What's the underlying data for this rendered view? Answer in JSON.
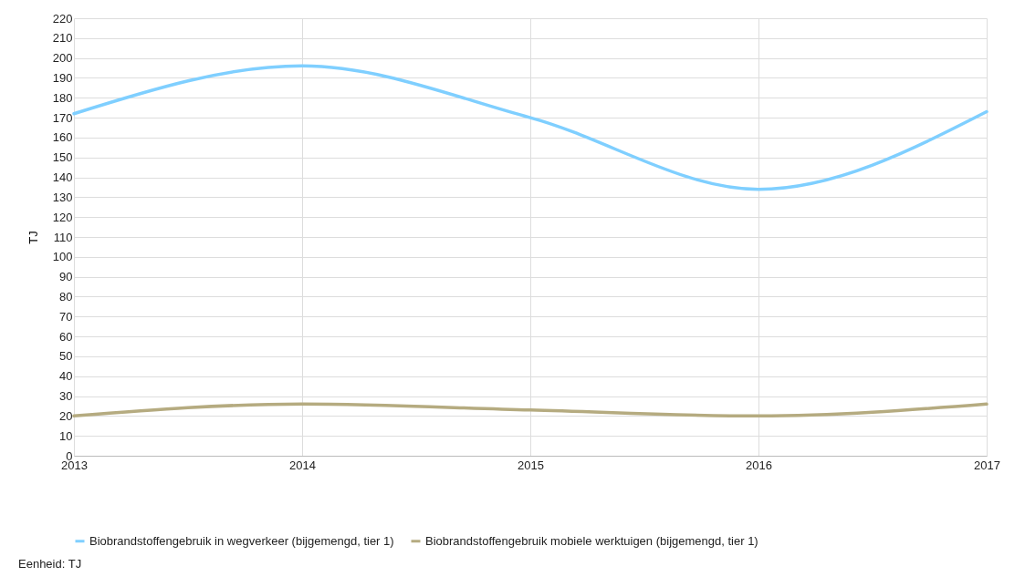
{
  "chart_data": {
    "type": "line",
    "ylabel": "TJ",
    "x": [
      2013,
      2014,
      2015,
      2016,
      2017
    ],
    "xlim": [
      2013,
      2017
    ],
    "xticks": [
      2013,
      2014,
      2015,
      2016,
      2017
    ],
    "ylim": [
      0,
      220
    ],
    "yticks": [
      0,
      10,
      20,
      30,
      40,
      50,
      60,
      70,
      80,
      90,
      100,
      110,
      120,
      130,
      140,
      150,
      160,
      170,
      180,
      190,
      200,
      210,
      220
    ],
    "grid": true,
    "legend": "bottom",
    "line_style": "solid",
    "series": [
      {
        "name": "Biobrandstoffengebruik in wegverkeer (bijgemengd, tier 1)",
        "color": "#7fcfff",
        "values": [
          172,
          196,
          170,
          134,
          173
        ]
      },
      {
        "name": "Biobrandstoffengebruik mobiele werktuigen (bijgemengd, tier 1)",
        "color": "#b5ab80",
        "values": [
          20,
          26,
          23,
          20,
          26
        ]
      }
    ],
    "annotations": [
      "Eenheid: TJ"
    ]
  }
}
